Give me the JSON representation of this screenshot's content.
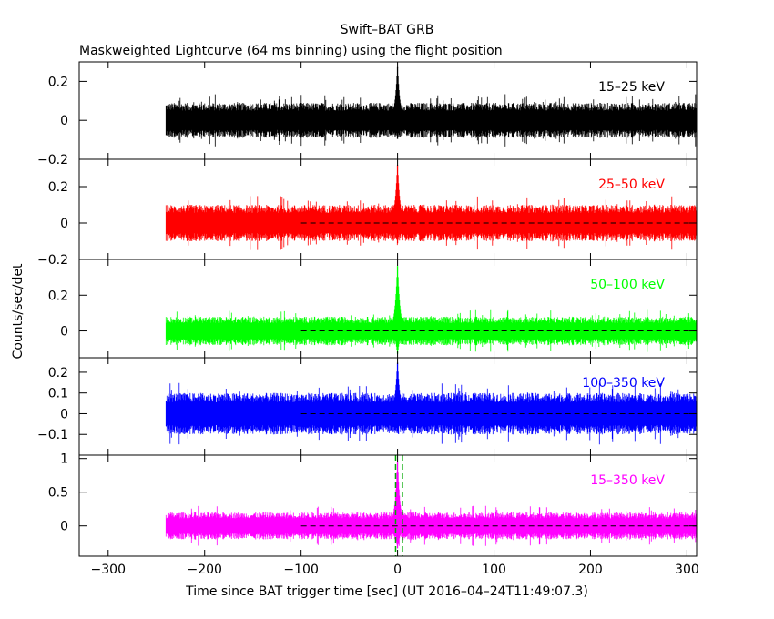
{
  "chart_data": {
    "type": "line",
    "title": "Swift–BAT GRB",
    "subtitle": "Maskweighted Lightcurve (64 ms binning) using the flight position",
    "xlabel": "Time since BAT trigger time [sec] (UT 2016–04–24T11:49:07.3)",
    "ylabel": "Counts/sec/det",
    "xlim": [
      -330,
      310
    ],
    "x_ticks": [
      -300,
      -200,
      -100,
      0,
      100,
      200,
      300
    ],
    "x_tick_labels": [
      "−300",
      "−200",
      "−100",
      "0",
      "100",
      "200",
      "300"
    ],
    "data_range": [
      -240,
      310
    ],
    "binning_sec": 0.064,
    "grid": false,
    "panels": [
      {
        "band": "15–25 keV",
        "color": "#000000",
        "ylim": [
          -0.2,
          0.3
        ],
        "y_ticks": [
          -0.2,
          0,
          0.2
        ],
        "y_tick_labels": [
          "−0.2",
          "0",
          "0.2"
        ],
        "noise_amplitude": 0.09,
        "peak": 0.3,
        "zero_line_from": null
      },
      {
        "band": "25–50 keV",
        "color": "#ff0000",
        "ylim": [
          -0.2,
          0.35
        ],
        "y_ticks": [
          -0.2,
          0,
          0.2
        ],
        "y_tick_labels": [
          "−0.2",
          "0",
          "0.2"
        ],
        "noise_amplitude": 0.1,
        "peak": 0.35,
        "zero_line_from": -100
      },
      {
        "band": "50–100 keV",
        "color": "#00ff00",
        "ylim": [
          -0.15,
          0.4
        ],
        "y_ticks": [
          0,
          0.2
        ],
        "y_tick_labels": [
          "0",
          "0.2"
        ],
        "noise_amplitude": 0.08,
        "peak": 0.4,
        "zero_line_from": -100
      },
      {
        "band": "100–350 keV",
        "color": "#0000ff",
        "ylim": [
          -0.2,
          0.27
        ],
        "y_ticks": [
          -0.1,
          0,
          0.1,
          0.2
        ],
        "y_tick_labels": [
          "−0.1",
          "0",
          "0.1",
          "0.2"
        ],
        "noise_amplitude": 0.1,
        "peak": 0.27,
        "zero_line_from": -100
      },
      {
        "band": "15–350 keV",
        "color": "#ff00ff",
        "ylim": [
          -0.45,
          1.05
        ],
        "y_ticks": [
          0,
          0.5,
          1
        ],
        "y_tick_labels": [
          "0",
          "0.5",
          "1"
        ],
        "noise_amplitude": 0.2,
        "peak": 1.05,
        "zero_line_from": -100,
        "markers": [
          {
            "x": -2,
            "color": "#00aa00",
            "style": "dashed"
          },
          {
            "x": 5,
            "color": "#00aa00",
            "style": "dashed"
          }
        ]
      }
    ]
  }
}
